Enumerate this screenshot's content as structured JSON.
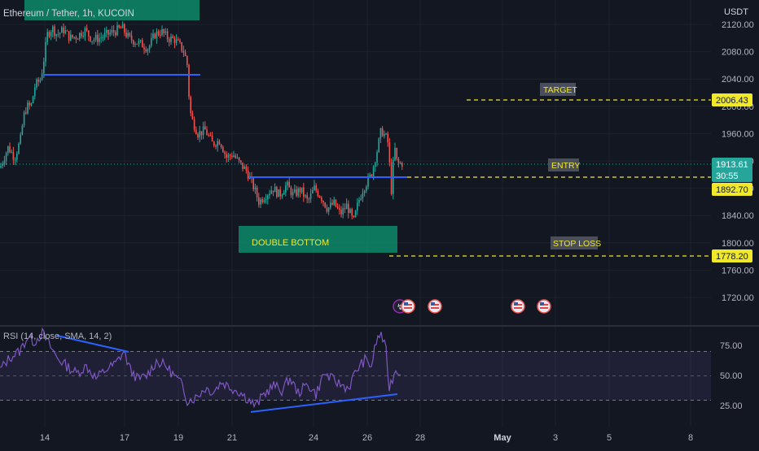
{
  "header": {
    "symbol_title": "Ethereum / Tether, 1h, KUCOIN",
    "currency": "USDT"
  },
  "annotations": {
    "target_label": "TARGET",
    "entry_label": "ENTRY",
    "stop_loss_label": "STOP LOSS",
    "double_bottom_label": "DOUBLE BOTTOM"
  },
  "price_tags": {
    "target": "2006.43",
    "current": "1913.61",
    "countdown": "30:55",
    "entry": "1892.70",
    "stop_loss": "1778.20"
  },
  "rsi": {
    "title": "RSI (14, close, SMA, 14, 2)",
    "ticks": [
      "75.00",
      "50.00",
      "25.00"
    ]
  },
  "colors": {
    "background": "#131722",
    "up": "#26a69a",
    "down": "#ef5350",
    "trendline": "#2962ff",
    "dashed_level": "#f0e92a",
    "price_tag": "#f0e92a",
    "green_box": "#0e8a6a",
    "rsi_line": "#7e57c2",
    "rsi_band": "#7e57c2"
  },
  "icons": [
    "us-flag-event-icon",
    "us-flag-event-icon",
    "us-flag-event-icon",
    "us-flag-event-icon"
  ],
  "chart_data": [
    {
      "type": "candlestick",
      "title": "Ethereum / Tether, 1h, KUCOIN",
      "ylabel": "USDT",
      "y_ticks": [
        2120,
        2080,
        2040,
        2000,
        1960,
        1920,
        1880,
        1840,
        1800,
        1760,
        1720
      ],
      "y_tick_labels": [
        "2120.00",
        "2080.00",
        "2040.00",
        "2000.00",
        "1960.00",
        "1920.00",
        "1880.00",
        "1840.00",
        "1800.00",
        "1760.00",
        "1720.00"
      ],
      "ylim": [
        1700,
        2130
      ],
      "x_tick_labels": [
        "14",
        "17",
        "19",
        "21",
        "24",
        "26",
        "28",
        "May",
        "3",
        "5",
        "8"
      ],
      "price_path": [
        [
          0,
          1910
        ],
        [
          10,
          1940
        ],
        [
          18,
          1925
        ],
        [
          25,
          1950
        ],
        [
          29,
          1985
        ],
        [
          33,
          2000
        ],
        [
          38,
          2000
        ],
        [
          43,
          2030
        ],
        [
          50,
          2040
        ],
        [
          54,
          2070
        ],
        [
          58,
          2105
        ],
        [
          64,
          2115
        ],
        [
          70,
          2105
        ],
        [
          78,
          2112
        ],
        [
          86,
          2100
        ],
        [
          95,
          2103
        ],
        [
          104,
          2112
        ],
        [
          113,
          2098
        ],
        [
          122,
          2100
        ],
        [
          131,
          2105
        ],
        [
          141,
          2110
        ],
        [
          150,
          2115
        ],
        [
          158,
          2100
        ],
        [
          166,
          2095
        ],
        [
          175,
          2090
        ],
        [
          182,
          2085
        ],
        [
          190,
          2105
        ],
        [
          198,
          2110
        ],
        [
          206,
          2100
        ],
        [
          214,
          2098
        ],
        [
          220,
          2090
        ],
        [
          226,
          2080
        ],
        [
          230,
          2060
        ],
        [
          233,
          1995
        ],
        [
          236,
          1980
        ],
        [
          243,
          1960
        ],
        [
          252,
          1965
        ],
        [
          261,
          1945
        ],
        [
          270,
          1950
        ],
        [
          278,
          1925
        ],
        [
          286,
          1930
        ],
        [
          295,
          1915
        ],
        [
          303,
          1905
        ],
        [
          312,
          1880
        ],
        [
          318,
          1860
        ],
        [
          326,
          1870
        ],
        [
          335,
          1880
        ],
        [
          343,
          1870
        ],
        [
          352,
          1885
        ],
        [
          360,
          1870
        ],
        [
          369,
          1878
        ],
        [
          378,
          1860
        ],
        [
          386,
          1880
        ],
        [
          394,
          1868
        ],
        [
          402,
          1850
        ],
        [
          410,
          1858
        ],
        [
          418,
          1842
        ],
        [
          426,
          1855
        ],
        [
          434,
          1830
        ],
        [
          440,
          1860
        ],
        [
          446,
          1880
        ],
        [
          451,
          1890
        ],
        [
          456,
          1900
        ],
        [
          460,
          1920
        ],
        [
          464,
          1940
        ],
        [
          468,
          1965
        ],
        [
          472,
          1958
        ],
        [
          476,
          1950
        ],
        [
          479,
          1905
        ],
        [
          481,
          1870
        ],
        [
          484,
          1945
        ],
        [
          487,
          1920
        ],
        [
          490,
          1915
        ],
        [
          494,
          1917
        ]
      ],
      "levels": {
        "target": 2006.43,
        "current": 1913.61,
        "entry": 1892.7,
        "stop_loss": 1778.2
      }
    },
    {
      "type": "line",
      "title": "RSI (14, close, SMA, 14, 2)",
      "ylim": [
        15,
        90
      ],
      "y_ticks": [
        75,
        50,
        25
      ],
      "band": [
        30,
        70
      ],
      "rsi_path": [
        [
          0,
          55
        ],
        [
          12,
          65
        ],
        [
          24,
          70
        ],
        [
          34,
          82
        ],
        [
          42,
          78
        ],
        [
          52,
          85
        ],
        [
          60,
          76
        ],
        [
          70,
          65
        ],
        [
          82,
          58
        ],
        [
          94,
          52
        ],
        [
          106,
          58
        ],
        [
          118,
          48
        ],
        [
          130,
          55
        ],
        [
          142,
          60
        ],
        [
          152,
          70
        ],
        [
          160,
          55
        ],
        [
          170,
          47
        ],
        [
          180,
          50
        ],
        [
          192,
          62
        ],
        [
          204,
          58
        ],
        [
          214,
          50
        ],
        [
          224,
          42
        ],
        [
          230,
          30
        ],
        [
          240,
          32
        ],
        [
          252,
          40
        ],
        [
          262,
          37
        ],
        [
          272,
          45
        ],
        [
          282,
          41
        ],
        [
          294,
          37
        ],
        [
          306,
          30
        ],
        [
          314,
          25
        ],
        [
          324,
          35
        ],
        [
          336,
          42
        ],
        [
          346,
          38
        ],
        [
          356,
          48
        ],
        [
          366,
          36
        ],
        [
          378,
          43
        ],
        [
          388,
          35
        ],
        [
          398,
          52
        ],
        [
          408,
          47
        ],
        [
          418,
          43
        ],
        [
          428,
          40
        ],
        [
          438,
          55
        ],
        [
          448,
          63
        ],
        [
          456,
          58
        ],
        [
          462,
          78
        ],
        [
          468,
          85
        ],
        [
          474,
          70
        ],
        [
          478,
          40
        ],
        [
          482,
          48
        ],
        [
          486,
          55
        ],
        [
          492,
          53
        ]
      ]
    }
  ]
}
